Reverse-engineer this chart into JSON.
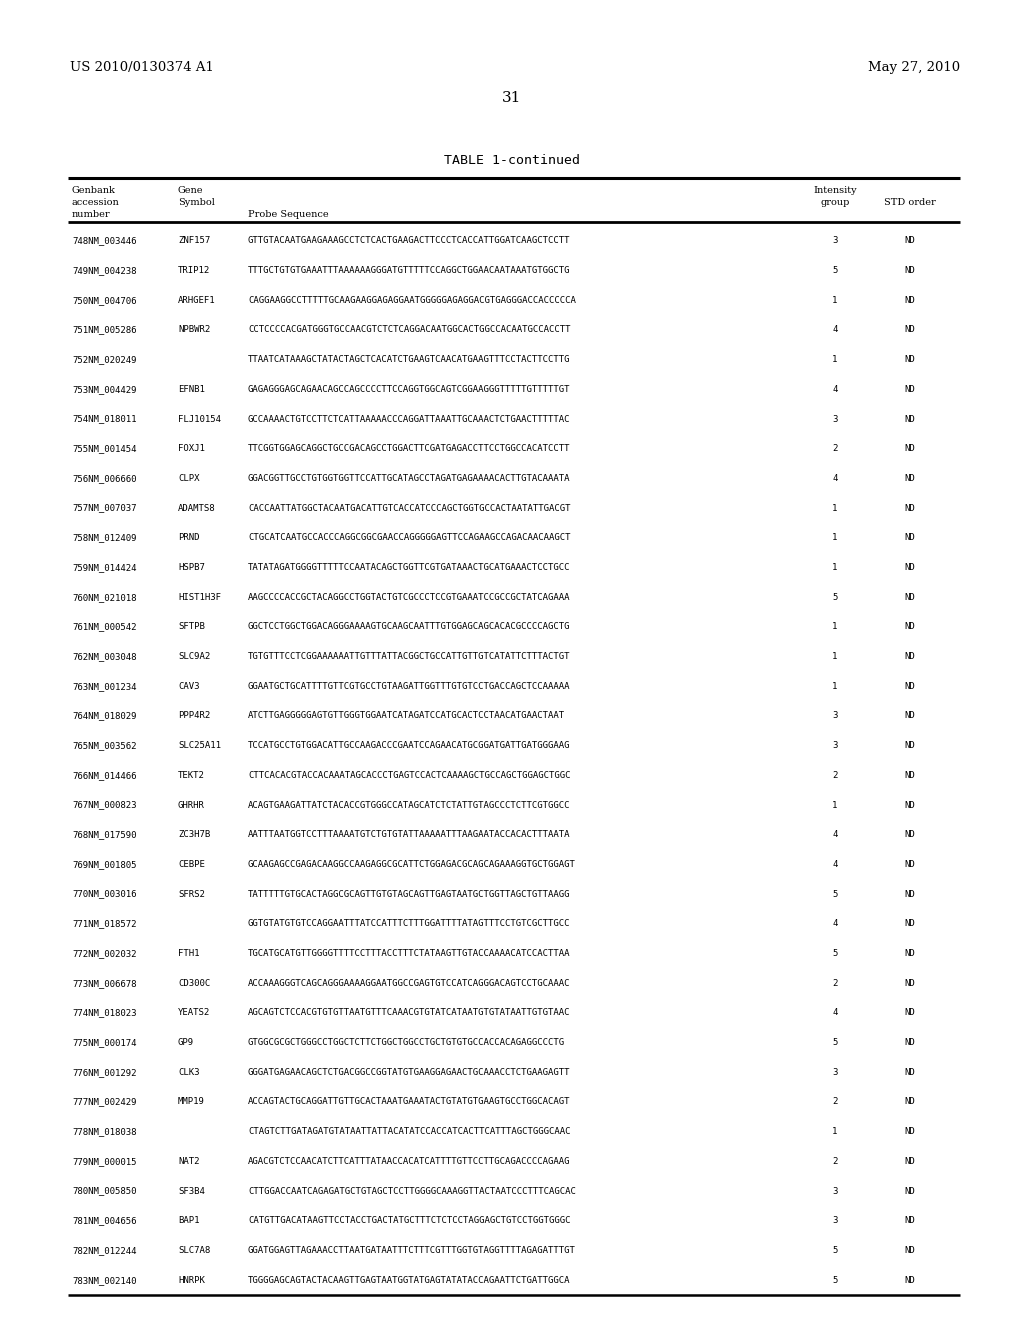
{
  "header_left": "US 2010/0130374 A1",
  "header_right": "May 27, 2010",
  "page_number": "31",
  "table_title": "TABLE 1-continued",
  "rows": [
    [
      "748NM_003446",
      "ZNF157",
      "GTTGTACAATGAAGAAAGCCTCTCACTGAAGACTTCCCTCACCATTGGATCAAGCTCCTT",
      "3",
      "ND"
    ],
    [
      "749NM_004238",
      "TRIP12",
      "TTTGCTGTGTGAAATTTAAAAAAGGGATGTTTTTCCAGGCTGGAACAATAAATGTGGCTG",
      "5",
      "ND"
    ],
    [
      "750NM_004706",
      "ARHGEF1",
      "CAGGAAGGCCTTTTTGCAAGAAGGAGAGGAATGGGGGAGAGGACGTGAGGGACCACCCCCA",
      "1",
      "ND"
    ],
    [
      "751NM_005286",
      "NPBWR2",
      "CCTCCCCACGATGGGTGCCAACGTCTCTCAGGACAATGGCACTGGCCACAATGCCACCTT",
      "4",
      "ND"
    ],
    [
      "752NM_020249",
      "",
      "TTAATCATAAAGCTATACTAGCTCACATCTGAAGTCAACATGAAGTTTCCTACTTCCTTG",
      "1",
      "ND"
    ],
    [
      "753NM_004429",
      "EFNB1",
      "GAGAGGGAGCAGAACAGCCAGCCCCTTCCAGGTGGCAGTCGGAAGGGTTTTTGTTTTTGT",
      "4",
      "ND"
    ],
    [
      "754NM_018011",
      "FLJ10154",
      "GCCAAAACTGTCCTTCTCATTAAAAACCCAGGATTAAATTGCAAACTCTGAACTTTTTAC",
      "3",
      "ND"
    ],
    [
      "755NM_001454",
      "FOXJ1",
      "TTCGGTGGAGCAGGCTGCCGACAGCCTGGACTTCGATGAGACCTTCCTGGCCACATCCTT",
      "2",
      "ND"
    ],
    [
      "756NM_006660",
      "CLPX",
      "GGACGGTTGCCTGTGGTGGTTCCATTGCATAGCCTAGATGAGAAAACACTTGTACAAATA",
      "4",
      "ND"
    ],
    [
      "757NM_007037",
      "ADAMTS8",
      "CACCAATTATGGCTACAATGACATTGTCACCATCCCAGCTGGTGCCACTAATATTGACGT",
      "1",
      "ND"
    ],
    [
      "758NM_012409",
      "PRND",
      "CTGCATCAATGCCACCCAGGCGGCGAACCAGGGGGAGTTCCAGAAGCCAGACAACAAGCT",
      "1",
      "ND"
    ],
    [
      "759NM_014424",
      "HSPB7",
      "TATATAGATGGGGTTTTTCCAATACAGCTGGTTCGTGATAAACTGCATGAAACTCCTGCC",
      "1",
      "ND"
    ],
    [
      "760NM_021018",
      "HIST1H3F",
      "AAGCCCCACCGCTACAGGCCTGGTACTGTCGCCCTCCGTGAAATCCGCCGCTATCAGAAA",
      "5",
      "ND"
    ],
    [
      "761NM_000542",
      "SFTPB",
      "GGCTCCTGGCTGGACAGGGAAAAGTGCAAGCAATTTGTGGAGCAGCACACGCCCCAGCTG",
      "1",
      "ND"
    ],
    [
      "762NM_003048",
      "SLC9A2",
      "TGTGTTTCCTCGGAAAAAATTGTTTATTACGGCTGCCATTGTTGTCATATTCTTTACTGT",
      "1",
      "ND"
    ],
    [
      "763NM_001234",
      "CAV3",
      "GGAATGCTGCATTTTGTTCGTGCCTGTAAGATTGGTTTGTGTCCTGACCAGCTCCAAAAA",
      "1",
      "ND"
    ],
    [
      "764NM_018029",
      "PPP4R2",
      "ATCTTGAGGGGGAGTGTTGGGTGGAATCATAGATCCATGCACTCCTAACATGAACTAAT",
      "3",
      "ND"
    ],
    [
      "765NM_003562",
      "SLC25A11",
      "TCCATGCCTGTGGACATTGCCAAGACCCGAATCCAGAACATGCGGATGATTGATGGGAAG",
      "3",
      "ND"
    ],
    [
      "766NM_014466",
      "TEKT2",
      "CTTCACACGTACCACAAATAGCACCCTGAGTCCACTCAAAAGCTGCCAGCTGGAGCTGGC",
      "2",
      "ND"
    ],
    [
      "767NM_000823",
      "GHRHR",
      "ACAGTGAAGATTATCTACACCGTGGGCCATAGCATCTCTATTGTAGCCCTCTTCGTGGCC",
      "1",
      "ND"
    ],
    [
      "768NM_017590",
      "ZC3H7B",
      "AATTTAATGGTCCTTTAAAATGTCTGTGTATTAAAAATTTAAGAATACCACACTTTAATA",
      "4",
      "ND"
    ],
    [
      "769NM_001805",
      "CEBPE",
      "GCAAGAGCCGAGACAAGGCCAAGAGGCGCATTCTGGAGACGCAGCAGAAAGGTGCTGGAGT",
      "4",
      "ND"
    ],
    [
      "770NM_003016",
      "SFRS2",
      "TATTTTTGTGCACTAGGCGCAGTTGTGTAGCAGTTGAGTAATGCTGGTTAGCTGTTAAGG",
      "5",
      "ND"
    ],
    [
      "771NM_018572",
      "",
      "GGTGTATGTGTCCAGGAATTTATCCATTTCTTTGGATTTTATAGTTTCCTGTCGCTTGCC",
      "4",
      "ND"
    ],
    [
      "772NM_002032",
      "FTH1",
      "TGCATGCATGTTGGGGTTTTCCTTTACCTTTCTATAAGTTGTACCAAAACATCCACTTAA",
      "5",
      "ND"
    ],
    [
      "773NM_006678",
      "CD300C",
      "ACCAAAGGGTCAGCAGGGAAAAGGAATGGCCGAGTGTCCATCAGGGACAGTCCTGCAAAC",
      "2",
      "ND"
    ],
    [
      "774NM_018023",
      "YEATS2",
      "AGCAGTCTCCACGTGTGTTAATGTTTCAAACGTGTATCATAATGTGTATAATTGTGTAAC",
      "4",
      "ND"
    ],
    [
      "775NM_000174",
      "GP9",
      "GTGGCGCGCTGGGCCTGGCTCTTCTGGCTGGCCTGCTGTGTGCCACCACAGAGGCCCTG",
      "5",
      "ND"
    ],
    [
      "776NM_001292",
      "CLK3",
      "GGGATGAGAACAGCTCTGACGGCCGGTATGTGAAGGAGAACTGCAAACCTCTGAAGAGTT",
      "3",
      "ND"
    ],
    [
      "777NM_002429",
      "MMP19",
      "ACCAGTACTGCAGGATTGTTGCACTAAATGAAATACTGTATGTGAAGTGCCTGGCACAGT",
      "2",
      "ND"
    ],
    [
      "778NM_018038",
      "",
      "CTAGTCTTGATAGATGTATAATTATTACATATCCACCATCACTTCATTTAGCTGGGCAAC",
      "1",
      "ND"
    ],
    [
      "779NM_000015",
      "NAT2",
      "AGACGTCTCCAACATCTTCATTTATAACCACATCATTTTGTTCCTTGCAGACCCCAGAAG",
      "2",
      "ND"
    ],
    [
      "780NM_005850",
      "SF3B4",
      "CTTGGACCAATCAGAGATGCTGTAGCTCCTTGGGGCAAAGGTTACTAATCCCTTTCAGCAC",
      "3",
      "ND"
    ],
    [
      "781NM_004656",
      "BAP1",
      "CATGTTGACATAAGTTCCTACCTGACTATGCTTTCTCTCCTAGGAGCTGTCCTGGTGGGC",
      "3",
      "ND"
    ],
    [
      "782NM_012244",
      "SLC7A8",
      "GGATGGAGTTAGAAACCTTAATGATAATTTCTTTCGTTTGGTGTAGGTTTTAGAGATTTGT",
      "5",
      "ND"
    ],
    [
      "783NM_002140",
      "HNRPK",
      "TGGGGAGCAGTACTACAAGTTGAGTAATGGTATGAGTATATACCAGAATTCTGATTGGCA",
      "5",
      "ND"
    ]
  ],
  "bg_color": "#ffffff",
  "text_color": "#000000"
}
